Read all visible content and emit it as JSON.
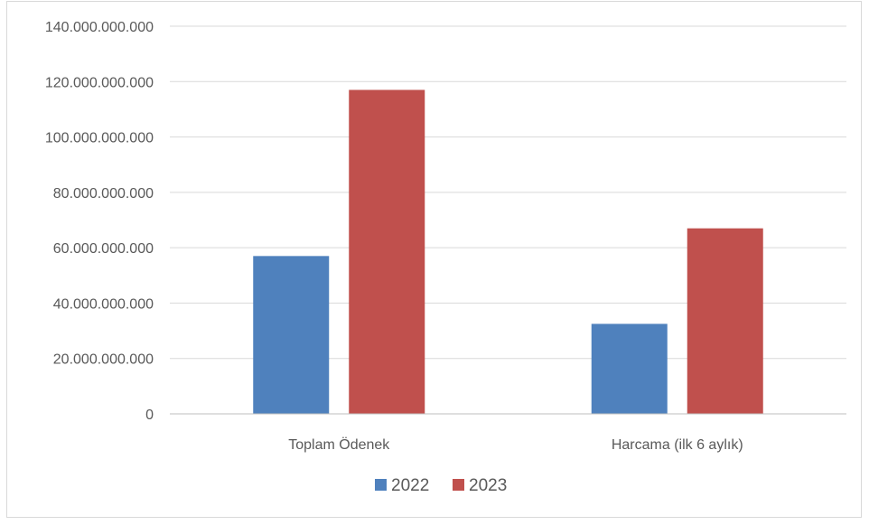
{
  "chart_data": {
    "type": "bar",
    "categories": [
      "Toplam Ödenek",
      "Harcama (ilk 6 aylık)"
    ],
    "series": [
      {
        "name": "2022",
        "color": "#4f81bd",
        "values": [
          57000000000,
          32500000000
        ]
      },
      {
        "name": "2023",
        "color": "#c0504d",
        "values": [
          117000000000,
          67000000000
        ]
      }
    ],
    "y_ticks": [
      {
        "value": 0,
        "label": "0"
      },
      {
        "value": 20000000000,
        "label": "20.000.000.000"
      },
      {
        "value": 40000000000,
        "label": "40.000.000.000"
      },
      {
        "value": 60000000000,
        "label": "60.000.000.000"
      },
      {
        "value": 80000000000,
        "label": "80.000.000.000"
      },
      {
        "value": 100000000000,
        "label": "100.000.000.000"
      },
      {
        "value": 120000000000,
        "label": "120.000.000.000"
      },
      {
        "value": 140000000000,
        "label": "140.000.000.000"
      }
    ],
    "ylim": [
      0,
      140000000000
    ],
    "grid": true,
    "legend_position": "bottom",
    "gridline_color": "#d9d9d9",
    "axis_color": "#bfbfbf"
  }
}
